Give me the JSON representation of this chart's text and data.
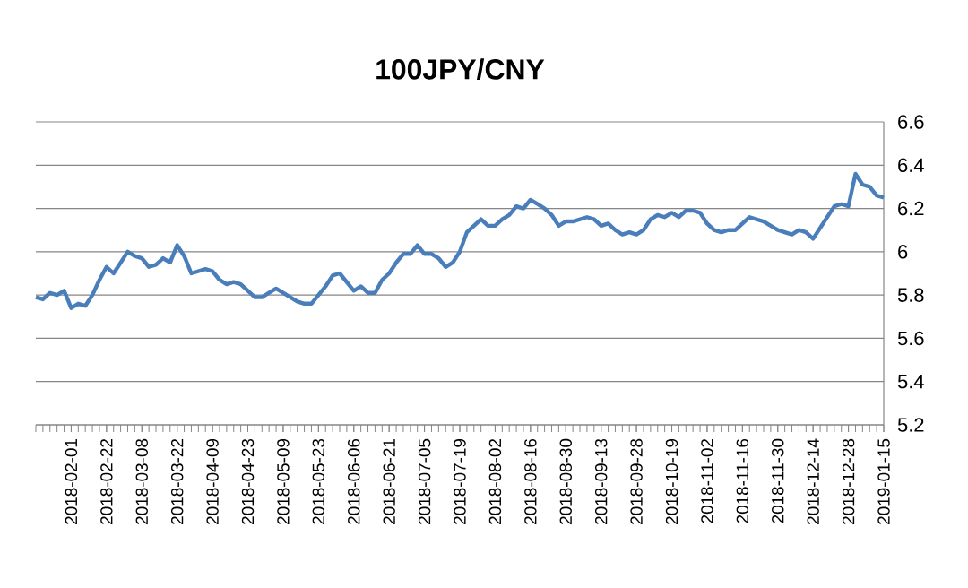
{
  "chart_data": {
    "type": "line",
    "title": "100JPY/CNY",
    "categories": [
      null,
      null,
      null,
      null,
      null,
      "2018-02-01",
      null,
      null,
      null,
      null,
      "2018-02-22",
      null,
      null,
      null,
      null,
      "2018-03-08",
      null,
      null,
      null,
      null,
      "2018-03-22",
      null,
      null,
      null,
      null,
      "2018-04-09",
      null,
      null,
      null,
      null,
      "2018-04-23",
      null,
      null,
      null,
      null,
      "2018-05-09",
      null,
      null,
      null,
      null,
      "2018-05-23",
      null,
      null,
      null,
      null,
      "2018-06-06",
      null,
      null,
      null,
      null,
      "2018-06-21",
      null,
      null,
      null,
      null,
      "2018-07-05",
      null,
      null,
      null,
      null,
      "2018-07-19",
      null,
      null,
      null,
      null,
      "2018-08-02",
      null,
      null,
      null,
      null,
      "2018-08-16",
      null,
      null,
      null,
      null,
      "2018-08-30",
      null,
      null,
      null,
      null,
      "2018-09-13",
      null,
      null,
      null,
      null,
      "2018-09-28",
      null,
      null,
      null,
      null,
      "2018-10-19",
      null,
      null,
      null,
      null,
      "2018-11-02",
      null,
      null,
      null,
      null,
      "2018-11-16",
      null,
      null,
      null,
      null,
      "2018-11-30",
      null,
      null,
      null,
      null,
      "2018-12-14",
      null,
      null,
      null,
      null,
      "2018-12-28",
      null,
      null,
      null,
      null,
      "2019-01-15"
    ],
    "series": [
      {
        "color": "#4a7ebb",
        "values": [
          5.79,
          5.78,
          5.81,
          5.8,
          5.82,
          5.74,
          5.76,
          5.75,
          5.8,
          5.87,
          5.93,
          5.9,
          5.95,
          6.0,
          5.98,
          5.97,
          5.93,
          5.94,
          5.97,
          5.95,
          6.03,
          5.98,
          5.9,
          5.91,
          5.92,
          5.91,
          5.87,
          5.85,
          5.86,
          5.85,
          5.82,
          5.79,
          5.79,
          5.81,
          5.83,
          5.81,
          5.79,
          5.77,
          5.76,
          5.76,
          5.8,
          5.84,
          5.89,
          5.9,
          5.86,
          5.82,
          5.84,
          5.81,
          5.81,
          5.87,
          5.9,
          5.95,
          5.99,
          5.99,
          6.03,
          5.99,
          5.99,
          5.97,
          5.93,
          5.95,
          6.0,
          6.09,
          6.12,
          6.15,
          6.12,
          6.12,
          6.15,
          6.17,
          6.21,
          6.2,
          6.24,
          6.22,
          6.2,
          6.17,
          6.12,
          6.14,
          6.14,
          6.15,
          6.16,
          6.15,
          6.12,
          6.13,
          6.1,
          6.08,
          6.09,
          6.08,
          6.1,
          6.15,
          6.17,
          6.16,
          6.18,
          6.16,
          6.19,
          6.19,
          6.18,
          6.13,
          6.1,
          6.09,
          6.1,
          6.1,
          6.13,
          6.16,
          6.15,
          6.14,
          6.12,
          6.1,
          6.09,
          6.08,
          6.1,
          6.09,
          6.06,
          6.11,
          6.16,
          6.21,
          6.22,
          6.21,
          6.36,
          6.31,
          6.3,
          6.26,
          6.25
        ]
      }
    ],
    "ylim": [
      5.2,
      6.6
    ],
    "yticks": [
      5.2,
      5.4,
      5.6,
      5.8,
      6,
      6.2,
      6.4,
      6.6
    ],
    "grid": "y",
    "marker": "none",
    "line_style": "solid"
  }
}
